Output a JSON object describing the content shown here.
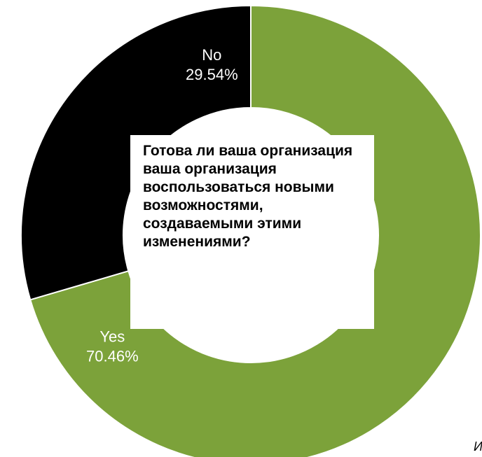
{
  "chart_data": {
    "type": "pie",
    "donut": true,
    "title": "Готова ли ваша организация ваша организация воспользоваться новыми возможностями, создаваемыми этими изменениями?",
    "categories": [
      "Yes",
      "No"
    ],
    "values": [
      70.46,
      29.54
    ],
    "value_labels": [
      "70.46%",
      "29.54%"
    ],
    "colors": [
      "#7ca23a",
      "#000000"
    ],
    "start_angle_deg": 0,
    "direction": "clockwise",
    "legend": "none"
  },
  "footnote": "И"
}
